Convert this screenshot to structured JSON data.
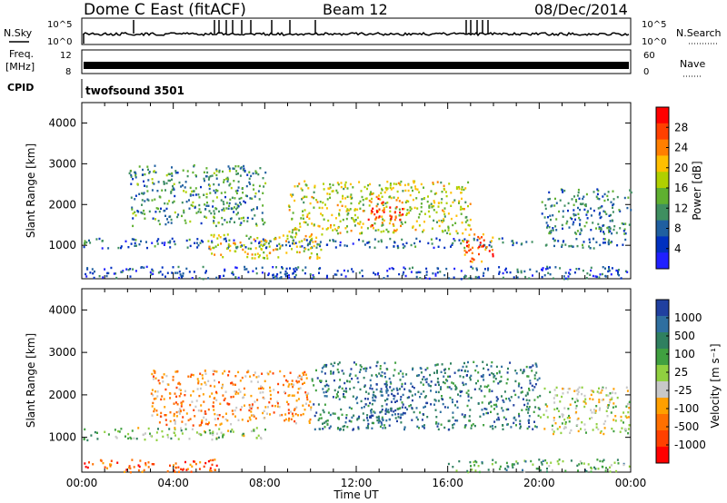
{
  "header": {
    "station": "Dome C East (fitACF)",
    "beam": "Beam 12",
    "date": "08/Dec/2014"
  },
  "strip_labels": {
    "nsky": "N.Sky",
    "freq": "Freq.",
    "freq_unit": "[MHz]",
    "cpid": "CPID",
    "nsearch": "N.Search",
    "nave": "Nave",
    "cpid_value": "twofsound 3501",
    "nsky_ticks": [
      "10^5",
      "10^0"
    ],
    "freq_ticks": [
      "12",
      "8"
    ],
    "nave_ticks": [
      "60",
      "0"
    ]
  },
  "chart_data": [
    {
      "type": "heatmap",
      "panel": "power",
      "xlabel": "",
      "ylabel": "Slant Range [km]",
      "xlim": [
        0,
        24
      ],
      "ylim": [
        180,
        4500
      ],
      "yticks": [
        1000,
        2000,
        3000,
        4000
      ],
      "colorbar_label": "Power [dB]",
      "colorbar_ticks": [
        "28",
        "24",
        "20",
        "16",
        "12",
        "8",
        "4"
      ],
      "colorbar_colors": [
        "#ff0000",
        "#ff4000",
        "#ff7f00",
        "#ffbf00",
        "#b0d000",
        "#5fb030",
        "#3f8f60",
        "#1f5fa0",
        "#0030c0",
        "#2020ff"
      ],
      "bands": [
        {
          "t0": 0.0,
          "t1": 24.0,
          "r0": 950,
          "r1": 1200,
          "level": 0.25
        },
        {
          "t0": 5.5,
          "t1": 10.5,
          "r0": 700,
          "r1": 1300,
          "level": 0.6
        },
        {
          "t0": 9.0,
          "t1": 17.0,
          "r0": 1300,
          "r1": 2600,
          "level": 0.55
        },
        {
          "t0": 12.5,
          "t1": 14.0,
          "r0": 1500,
          "r1": 2200,
          "level": 0.85
        },
        {
          "t0": 16.5,
          "t1": 18.0,
          "r0": 600,
          "r1": 1300,
          "level": 0.8
        },
        {
          "t0": 2.0,
          "t1": 8.0,
          "r0": 1500,
          "r1": 3000,
          "level": 0.35
        },
        {
          "t0": 20.0,
          "t1": 24.0,
          "r0": 1300,
          "r1": 2400,
          "level": 0.3
        },
        {
          "t0": 0.0,
          "t1": 24.0,
          "r0": 200,
          "r1": 500,
          "level": 0.2
        }
      ]
    },
    {
      "type": "heatmap",
      "panel": "velocity",
      "xlabel": "Time UT",
      "ylabel": "Slant Range [km]",
      "xlim": [
        0,
        24
      ],
      "ylim": [
        180,
        4500
      ],
      "yticks": [
        1000,
        2000,
        3000,
        4000
      ],
      "xticks": [
        "00:00",
        "04:00",
        "08:00",
        "12:00",
        "16:00",
        "20:00",
        "00:00"
      ],
      "colorbar_label": "Velocity [m s⁻¹]",
      "colorbar_ticks": [
        "1000",
        "500",
        "100",
        "25",
        "-25",
        "-100",
        "-500",
        "-1000"
      ],
      "colorbar_colors": [
        "#2040a0",
        "#2f6fa0",
        "#2f8060",
        "#40a040",
        "#90d040",
        "#c8c8c8",
        "#ffa000",
        "#ff7000",
        "#ff4000",
        "#ff0000"
      ],
      "bands": [
        {
          "t0": 0.0,
          "t1": 8.0,
          "r0": 950,
          "r1": 1250,
          "level": 0.45
        },
        {
          "t0": 3.0,
          "t1": 10.0,
          "r0": 1300,
          "r1": 2600,
          "level": 0.7
        },
        {
          "t0": 10.0,
          "t1": 20.0,
          "r0": 1200,
          "r1": 2800,
          "level": 0.2
        },
        {
          "t0": 12.5,
          "t1": 14.5,
          "r0": 1400,
          "r1": 2300,
          "level": 0.1
        },
        {
          "t0": 0.0,
          "t1": 6.0,
          "r0": 200,
          "r1": 500,
          "level": 0.8
        },
        {
          "t0": 16.0,
          "t1": 24.0,
          "r0": 200,
          "r1": 500,
          "level": 0.35
        },
        {
          "t0": 20.0,
          "t1": 24.0,
          "r0": 1100,
          "r1": 2200,
          "level": 0.5
        }
      ]
    }
  ]
}
